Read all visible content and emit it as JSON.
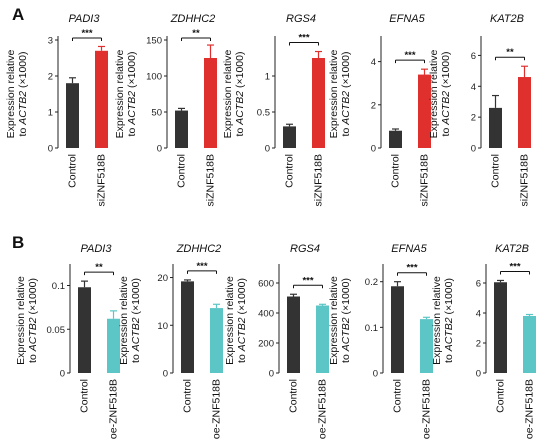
{
  "figure": {
    "y_axis_label_line1": "Expression relative",
    "y_axis_label_line2_prefix": "to ",
    "y_axis_label_gene": "ACTB2",
    "y_axis_label_unit": " (×1000)"
  },
  "colors": {
    "control": "#333333",
    "knockdown": "#e0302e",
    "overexpression": "#5cc6c6",
    "axis": "#222222"
  },
  "chart_data": [
    {
      "panel": "A",
      "type": "bar",
      "categories": [
        "Control",
        "siZNF518B"
      ],
      "charts": [
        {
          "title": "PADI3",
          "values": [
            1.8,
            2.7
          ],
          "errors": [
            0.15,
            0.12
          ],
          "ylim": [
            0,
            3
          ],
          "ticks": [
            0,
            1,
            2,
            3
          ],
          "sig": "***"
        },
        {
          "title": "ZDHHC2",
          "values": [
            52,
            125
          ],
          "errors": [
            3,
            18
          ],
          "ylim": [
            0,
            150
          ],
          "ticks": [
            0,
            50,
            100,
            150
          ],
          "sig": "**"
        },
        {
          "title": "RGS4",
          "values": [
            0.3,
            1.25
          ],
          "errors": [
            0.03,
            0.09
          ],
          "ylim": [
            0,
            1.5
          ],
          "ticks": [
            0,
            0.5,
            1.0
          ],
          "sig": "***"
        },
        {
          "title": "EFNA5",
          "values": [
            0.8,
            3.4
          ],
          "errors": [
            0.08,
            0.25
          ],
          "ylim": [
            0,
            5
          ],
          "ticks": [
            0,
            2,
            4
          ],
          "sig": "***"
        },
        {
          "title": "KAT2B",
          "values": [
            2.6,
            4.6
          ],
          "errors": [
            0.8,
            0.7
          ],
          "ylim": [
            0,
            7
          ],
          "ticks": [
            0,
            2,
            4,
            6
          ],
          "sig": "**"
        }
      ]
    },
    {
      "panel": "B",
      "type": "bar",
      "categories": [
        "Control",
        "oe-ZNF518B"
      ],
      "charts": [
        {
          "title": "PADI3",
          "values": [
            0.098,
            0.062
          ],
          "errors": [
            0.007,
            0.009
          ],
          "ylim": [
            0,
            0.12
          ],
          "ticks": [
            0,
            0.05,
            0.1
          ],
          "tick_labels": [
            "0",
            "0.05",
            "0.1"
          ],
          "sig": "**"
        },
        {
          "title": "ZDHHC2",
          "values": [
            19.2,
            13.6
          ],
          "errors": [
            0.3,
            0.8
          ],
          "ylim": [
            0,
            22
          ],
          "ticks": [
            0,
            10,
            20
          ],
          "sig": "***"
        },
        {
          "title": "RGS4",
          "values": [
            510,
            450
          ],
          "errors": [
            15,
            8
          ],
          "ylim": [
            0,
            700
          ],
          "ticks": [
            0,
            200,
            400,
            600
          ],
          "sig": "***"
        },
        {
          "title": "EFNA5",
          "values": [
            0.19,
            0.118
          ],
          "errors": [
            0.01,
            0.004
          ],
          "ylim": [
            0,
            0.23
          ],
          "ticks": [
            0,
            0.1,
            0.2
          ],
          "sig": "***"
        },
        {
          "title": "KAT2B",
          "values": [
            6.05,
            3.8
          ],
          "errors": [
            0.12,
            0.1
          ],
          "ylim": [
            0,
            7
          ],
          "ticks": [
            0,
            2,
            4,
            6
          ],
          "sig": "***"
        }
      ]
    }
  ]
}
